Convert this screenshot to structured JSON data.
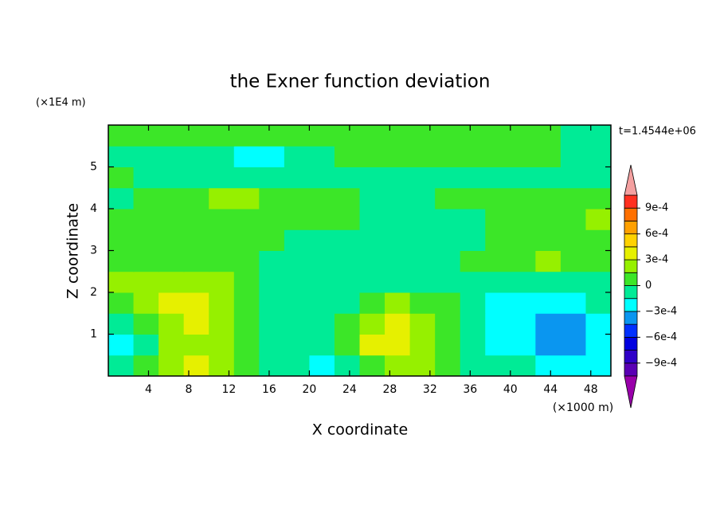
{
  "chart_data": {
    "type": "contour",
    "title": "the Exner function deviation",
    "x_label": "X coordinate",
    "x_unit": "(×1000 m)",
    "y_label": "Z coordinate",
    "y_unit": "(×1E4 m)",
    "annotation": "t=1.4544e+06",
    "xlim": [
      0,
      50
    ],
    "xticks": [
      4,
      8,
      12,
      16,
      20,
      24,
      28,
      32,
      36,
      40,
      44,
      48
    ],
    "ylim": [
      0,
      6
    ],
    "yticks": [
      1,
      2,
      3,
      4,
      5
    ],
    "x": [
      1.25,
      3.75,
      6.25,
      8.75,
      11.25,
      13.75,
      16.25,
      18.75,
      21.25,
      23.75,
      26.25,
      28.75,
      31.25,
      33.75,
      36.25,
      38.75,
      41.25,
      43.75,
      46.25,
      48.75
    ],
    "y": [
      0.25,
      0.75,
      1.25,
      1.75,
      2.25,
      2.75,
      3.25,
      3.75,
      4.25,
      4.75,
      5.25,
      5.75
    ],
    "z": [
      [
        -0.0001,
        5e-05,
        0.0002,
        0.00035,
        0.0002,
        0.0001,
        -5e-05,
        -0.0001,
        -0.0002,
        -5e-05,
        0.0001,
        0.00015,
        0.00015,
        5e-05,
        -5e-05,
        -0.0001,
        -0.00015,
        -0.0002,
        -0.0002,
        -0.00018
      ],
      [
        -0.0002,
        -5e-05,
        0.00015,
        0.00025,
        0.0002,
        0.0001,
        -5e-05,
        -0.0001,
        -0.0001,
        5e-05,
        0.00032,
        0.00032,
        0.0002,
        0.0001,
        -5e-05,
        -0.00018,
        -0.00025,
        -0.00035,
        -0.00032,
        -0.0002
      ],
      [
        -0.00015,
        5e-05,
        0.0002,
        0.0003,
        0.0002,
        0.0001,
        -5e-05,
        -0.0001,
        -5e-05,
        0.0001,
        0.0002,
        0.0003,
        0.0002,
        5e-05,
        -0.0001,
        -0.0002,
        -0.00025,
        -0.00036,
        -0.00032,
        -0.0002
      ],
      [
        5e-05,
        0.00015,
        0.00032,
        0.00035,
        0.0002,
        0.0001,
        -5e-05,
        -0.00015,
        -0.0001,
        -5e-05,
        0.0001,
        0.00015,
        0.0001,
        0,
        -0.0001,
        -0.0002,
        -0.0002,
        -0.0002,
        -0.0002,
        -0.00015
      ],
      [
        0.00015,
        0.0002,
        0.0002,
        0.0002,
        0.00015,
        5e-05,
        -5e-05,
        -0.0001,
        -0.0001,
        -5e-05,
        -5e-05,
        -0.0001,
        -0.0001,
        -0.0001,
        -0.0001,
        -5e-05,
        -5e-05,
        -0.0001,
        -0.0001,
        -5e-05
      ],
      [
        0.0001,
        0.0001,
        0.0001,
        5e-05,
        5e-05,
        5e-05,
        -5e-05,
        -5e-05,
        -0.0001,
        -0.00015,
        -0.00015,
        -0.00015,
        -0.0001,
        -5e-05,
        0,
        5e-05,
        0.0001,
        0.00015,
        0.0001,
        5e-05
      ],
      [
        5e-05,
        0.0001,
        0.0001,
        5e-05,
        5e-05,
        5e-05,
        0,
        -5e-05,
        -0.0001,
        -5e-05,
        -5e-05,
        -5e-05,
        -0.0001,
        -0.0001,
        -5e-05,
        2e-05,
        5e-05,
        5e-05,
        5e-05,
        5e-05
      ],
      [
        0.0001,
        0.0001,
        0.0001,
        5e-05,
        5e-05,
        5e-05,
        5e-05,
        5e-05,
        5e-05,
        5e-05,
        -5e-05,
        -5e-05,
        -5e-05,
        -5e-05,
        -3e-05,
        3e-05,
        5e-05,
        5e-05,
        5e-05,
        0.00016
      ],
      [
        -5e-05,
        5e-05,
        5e-05,
        0.0001,
        0.00016,
        0.00016,
        0.0001,
        5e-05,
        5e-05,
        5e-05,
        -5e-05,
        -5e-05,
        -5e-05,
        5e-05,
        0.0001,
        0.0001,
        0.0001,
        0.0001,
        5e-05,
        5e-05
      ],
      [
        5e-05,
        -5e-05,
        -5e-05,
        -5e-05,
        -5e-05,
        -5e-05,
        -5e-05,
        -5e-05,
        -5e-05,
        -5e-05,
        -5e-05,
        -5e-05,
        -5e-05,
        -5e-05,
        -5e-05,
        -5e-05,
        -5e-05,
        -5e-05,
        -5e-05,
        -5e-05
      ],
      [
        -5e-05,
        -5e-05,
        -5e-05,
        -5e-05,
        -0.0001,
        -0.00016,
        -0.00016,
        -0.0001,
        -5e-05,
        3e-05,
        5e-05,
        5e-05,
        0.0001,
        0.0001,
        5e-05,
        5e-05,
        5e-05,
        3e-05,
        -5e-05,
        -5e-05
      ],
      [
        5e-05,
        5e-05,
        5e-05,
        5e-05,
        5e-05,
        5e-05,
        5e-05,
        5e-05,
        5e-05,
        5e-05,
        5e-05,
        5e-05,
        5e-05,
        5e-05,
        5e-05,
        5e-05,
        5e-05,
        5e-05,
        -5e-05,
        -5e-05
      ]
    ],
    "levels": [
      -0.00105,
      -0.0009,
      -0.00075,
      -0.0006,
      -0.00045,
      -0.0003,
      -0.00015,
      0,
      0.00015,
      0.0003,
      0.00045,
      0.0006,
      0.00075,
      0.0009,
      0.00105
    ],
    "colors": [
      "#5a00b4",
      "#3000c8",
      "#0000e0",
      "#0030ff",
      "#0a96f0",
      "#00ffff",
      "#00eb96",
      "#3ce628",
      "#96f000",
      "#e6f000",
      "#ffd200",
      "#ffa000",
      "#ff7000",
      "#ff3020"
    ],
    "under_color": "#9900aa",
    "over_color": "#f4a0a0",
    "colorbar_ticks": [
      {
        "value": 0.0009,
        "label": "9e-4"
      },
      {
        "value": 0.0006,
        "label": "6e-4"
      },
      {
        "value": 0.0003,
        "label": "3e-4"
      },
      0,
      {
        "value": -0.0003,
        "label": "−3e-4"
      },
      {
        "value": -0.0006,
        "label": "−6e-4"
      },
      {
        "value": -0.0009,
        "label": "−9e-4"
      }
    ]
  }
}
